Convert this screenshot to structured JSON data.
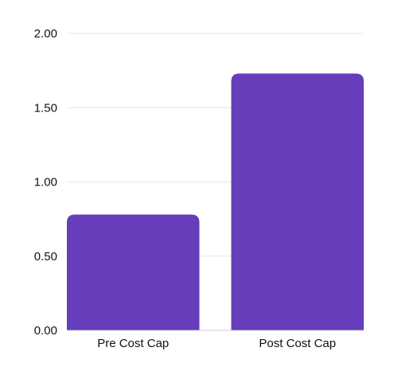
{
  "chart_data": {
    "type": "bar",
    "categories": [
      "Pre Cost Cap",
      "Post Cost Cap"
    ],
    "values": [
      0.78,
      1.73
    ],
    "title": "",
    "xlabel": "",
    "ylabel": "",
    "ylim": [
      0,
      2.0
    ],
    "yticks": [
      "0.00",
      "0.50",
      "1.00",
      "1.50",
      "2.00"
    ],
    "grid": true,
    "legend": "none",
    "bar_color": "#663dbb"
  }
}
